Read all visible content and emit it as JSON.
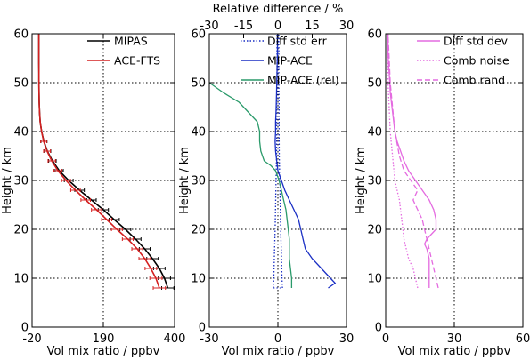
{
  "chart_data": [
    {
      "type": "line",
      "xlabel": "Vol mix ratio / ppbv",
      "ylabel": "Height / km",
      "xlim": [
        -20,
        400
      ],
      "ylim": [
        0,
        60
      ],
      "xticks": [
        -20,
        190,
        400
      ],
      "yticks": [
        0,
        10,
        20,
        30,
        40,
        50,
        60
      ],
      "grid": "dotted",
      "legend": "top-right",
      "series": [
        {
          "name": "MIPAS",
          "color": "#000000",
          "y": [
            8,
            10,
            12,
            14,
            16,
            18,
            20,
            22,
            24,
            26,
            28,
            30,
            32,
            34,
            36,
            38,
            40,
            42,
            44,
            46,
            48,
            50,
            52,
            54,
            56,
            58,
            60
          ],
          "x": [
            380,
            370,
            355,
            335,
            312,
            285,
            255,
            222,
            190,
            155,
            120,
            88,
            60,
            40,
            25,
            15,
            8,
            4,
            2,
            1,
            0.5,
            0.2,
            0.1,
            0,
            0,
            0,
            0
          ],
          "err": [
            18,
            18,
            17,
            17,
            16,
            16,
            16,
            15,
            15,
            14,
            14,
            13,
            12,
            11,
            10,
            9,
            8,
            7,
            6,
            6,
            5,
            5,
            5,
            5,
            5,
            5,
            5
          ]
        },
        {
          "name": "ACE-FTS",
          "color": "#d42020",
          "y": [
            8,
            10,
            12,
            14,
            16,
            18,
            20,
            22,
            24,
            26,
            28,
            30,
            32,
            34,
            36,
            38,
            40,
            42,
            44,
            46,
            48,
            50,
            52,
            54,
            56,
            58,
            60
          ],
          "x": [
            355,
            345,
            330,
            312,
            290,
            262,
            230,
            200,
            170,
            138,
            108,
            80,
            56,
            38,
            24,
            14,
            8,
            4,
            2,
            1,
            0.5,
            0.2,
            0.1,
            0,
            0,
            0,
            0
          ],
          "err": [
            18,
            18,
            17,
            17,
            16,
            16,
            16,
            15,
            15,
            14,
            14,
            13,
            12,
            11,
            10,
            9,
            8,
            7,
            6,
            6,
            5,
            5,
            5,
            5,
            5,
            5,
            5
          ]
        }
      ]
    },
    {
      "type": "line",
      "xlabel": "Vol mix ratio / ppbv",
      "ylabel": "Height / km",
      "top_xlabel": "Relative difference / %",
      "xlim": [
        -30,
        30
      ],
      "ylim": [
        0,
        60
      ],
      "xticks": [
        -30,
        0,
        30
      ],
      "top_xticks": [
        -30,
        -15,
        0,
        15,
        30
      ],
      "yticks": [
        0,
        10,
        20,
        30,
        40,
        50,
        60
      ],
      "grid": "dotted",
      "legend": "top-right",
      "series": [
        {
          "name": "Diff std err",
          "color": "#1a2fc4",
          "style": "dotted",
          "y": [
            8,
            10,
            15,
            20,
            25,
            30,
            35,
            40,
            45,
            50,
            55,
            60
          ],
          "x": [
            2.0,
            1.8,
            1.5,
            1.2,
            1.0,
            0.8,
            0.6,
            0.5,
            0.5,
            0.4,
            0.4,
            0.4
          ],
          "symmetric": true
        },
        {
          "name": "MIP-ACE",
          "color": "#1a2fc4",
          "style": "solid",
          "y": [
            8,
            9,
            10,
            12,
            14,
            16,
            18,
            20,
            22,
            24,
            26,
            28,
            30,
            32,
            34,
            36,
            38,
            40,
            42,
            44,
            46,
            48,
            50,
            52,
            54,
            56,
            58,
            60
          ],
          "x": [
            22,
            25,
            23,
            19,
            15,
            12,
            11,
            10,
            9,
            7,
            5,
            3,
            1.5,
            0,
            -0.5,
            -1,
            -1.2,
            -1,
            -1,
            -0.8,
            -0.7,
            -0.6,
            -0.5,
            -0.4,
            -0.3,
            -0.2,
            -0.2,
            -0.1
          ]
        },
        {
          "name": "MIP-ACE (rel)",
          "color": "#2a9a6a",
          "style": "solid",
          "y": [
            8,
            10,
            12,
            14,
            16,
            18,
            20,
            22,
            24,
            26,
            28,
            30,
            32,
            33,
            34,
            36,
            38,
            40,
            42,
            44,
            46,
            48,
            50
          ],
          "x": [
            6,
            6,
            5.5,
            5,
            5,
            5,
            4.5,
            4,
            3.5,
            2.5,
            1.5,
            0.5,
            -1,
            -3,
            -6,
            -7.5,
            -8,
            -8,
            -9,
            -13,
            -17,
            -24,
            -30
          ]
        }
      ]
    },
    {
      "type": "line",
      "xlabel": "Vol mix ratio / ppbv",
      "ylabel": "Height / km",
      "xlim": [
        0,
        60
      ],
      "ylim": [
        0,
        60
      ],
      "xticks": [
        0,
        30,
        60
      ],
      "yticks": [
        0,
        10,
        20,
        30,
        40,
        50,
        60
      ],
      "grid": "dotted",
      "legend": "top-right",
      "series": [
        {
          "name": "Diff std dev",
          "color": "#e46be0",
          "style": "solid",
          "y": [
            8,
            10,
            12,
            14,
            16,
            17,
            18,
            19,
            20,
            22,
            24,
            26,
            28,
            30,
            32,
            34,
            36,
            38,
            40,
            42,
            44,
            46,
            48,
            50,
            52,
            54,
            56,
            58,
            60
          ],
          "x": [
            19,
            19,
            19,
            19,
            18,
            17,
            18,
            20,
            22,
            22,
            21,
            19,
            16,
            13,
            10,
            8,
            6.5,
            5,
            4,
            3.5,
            3,
            2.5,
            2,
            1.8,
            1.5,
            1.2,
            1,
            1,
            1
          ]
        },
        {
          "name": "Comb noise",
          "color": "#e46be0",
          "style": "dotted",
          "y": [
            8,
            10,
            12,
            14,
            16,
            18,
            20,
            22,
            24,
            26,
            28,
            30,
            35,
            40,
            45,
            50,
            55,
            60
          ],
          "x": [
            14,
            13,
            12,
            10,
            9,
            8,
            7.5,
            7,
            6.5,
            6,
            5,
            4,
            3,
            2,
            1.5,
            1,
            1,
            1
          ]
        },
        {
          "name": "Comb rand",
          "color": "#e46be0",
          "style": "dashed",
          "y": [
            8,
            10,
            12,
            14,
            16,
            18,
            20,
            22,
            24,
            26,
            28,
            30,
            32,
            35,
            40,
            45,
            50,
            55,
            60
          ],
          "x": [
            23,
            22,
            21,
            20,
            19,
            18,
            17,
            16,
            14,
            12,
            14,
            11,
            8,
            6,
            4,
            3,
            2,
            1.5,
            1
          ]
        }
      ]
    }
  ]
}
